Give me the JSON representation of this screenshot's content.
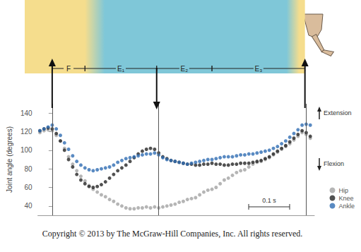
{
  "chart_data": {
    "type": "scatter",
    "y_label": "Joint angle (degrees)",
    "xlim": [
      -0.035,
      0.64
    ],
    "ylim": [
      30,
      150
    ],
    "yticks": [
      40,
      60,
      80,
      100,
      120,
      140
    ],
    "tick_labels": "y",
    "grid": false,
    "legend": "lower right",
    "marker": "circle",
    "x": [
      -0.03,
      -0.02,
      -0.01,
      0,
      0.01,
      0.02,
      0.03,
      0.04,
      0.05,
      0.06,
      0.07,
      0.08,
      0.09,
      0.1,
      0.11,
      0.12,
      0.13,
      0.14,
      0.15,
      0.16,
      0.17,
      0.18,
      0.19,
      0.2,
      0.21,
      0.22,
      0.23,
      0.24,
      0.25,
      0.26,
      0.27,
      0.28,
      0.29,
      0.3,
      0.31,
      0.32,
      0.33,
      0.34,
      0.35,
      0.36,
      0.37,
      0.38,
      0.39,
      0.4,
      0.41,
      0.42,
      0.43,
      0.44,
      0.45,
      0.46,
      0.47,
      0.48,
      0.49,
      0.5,
      0.51,
      0.52,
      0.53,
      0.54,
      0.55,
      0.56,
      0.57,
      0.58,
      0.59,
      0.6,
      0.61,
      0.62,
      0.63
    ],
    "series": [
      {
        "name": "Hip",
        "color": "#a3a3a3",
        "values": [
          119,
          121,
          122,
          121,
          116,
          110,
          102,
          93,
          85,
          78,
          72,
          67,
          62,
          58,
          55,
          52,
          50,
          47,
          45,
          42,
          40,
          38,
          37,
          37,
          38,
          38,
          39,
          38,
          39,
          38,
          39,
          40,
          41,
          42,
          44,
          45,
          47,
          48,
          49,
          52,
          55,
          57,
          58,
          60,
          64,
          68,
          70,
          73,
          76,
          78,
          79,
          82,
          85,
          87,
          88,
          90,
          92,
          95,
          98,
          101,
          104,
          107,
          111,
          115,
          119,
          117,
          113
        ]
      },
      {
        "name": "Knee",
        "color": "#262626",
        "values": [
          121,
          123,
          124,
          123,
          118,
          110,
          100,
          90,
          82,
          74,
          68,
          64,
          61,
          60,
          61,
          63,
          66,
          70,
          74,
          78,
          81,
          84,
          88,
          92,
          96,
          99,
          101,
          102,
          101,
          97,
          93,
          91,
          89,
          88,
          87,
          86,
          85,
          85,
          84,
          84,
          85,
          85,
          86,
          85,
          85,
          84,
          84,
          85,
          85,
          86,
          86,
          86,
          87,
          88,
          89,
          91,
          93,
          96,
          99,
          102,
          105,
          109,
          113,
          117,
          121,
          119,
          115
        ]
      },
      {
        "name": "Ankle",
        "color": "#2f6db3",
        "values": [
          121,
          123,
          125,
          127,
          123,
          116,
          108,
          101,
          94,
          88,
          84,
          81,
          79,
          78,
          79,
          80,
          81,
          82,
          84,
          87,
          89,
          91,
          92,
          93,
          94,
          95,
          96,
          96,
          97,
          95,
          92,
          90,
          89,
          88,
          87,
          86,
          85,
          86,
          87,
          88,
          89,
          90,
          90,
          91,
          92,
          93,
          93,
          93,
          94,
          95,
          95,
          96,
          96,
          97,
          98,
          99,
          100,
          102,
          104,
          107,
          110,
          114,
          118,
          122,
          127,
          128,
          127
        ]
      }
    ],
    "phases": [
      {
        "label": "F",
        "start": 0,
        "end": 0.08
      },
      {
        "label": "E₁",
        "start": 0.08,
        "end": 0.255
      },
      {
        "label": "E₂",
        "start": 0.255,
        "end": 0.39
      },
      {
        "label": "E₃",
        "start": 0.39,
        "end": 0.617
      }
    ],
    "events": [
      {
        "x": 0,
        "arrow": "up"
      },
      {
        "x": 0.255,
        "arrow": "down"
      },
      {
        "x": 0.617,
        "arrow": "up"
      }
    ],
    "scale_bar": {
      "length": 0.1,
      "label": "0.1 s"
    },
    "annotations": {
      "extension": "Extension",
      "flexion": "Flexion",
      "credit": "Copyright © 2013 by The McGraw-Hill Companies, Inc. All rights reserved."
    }
  }
}
